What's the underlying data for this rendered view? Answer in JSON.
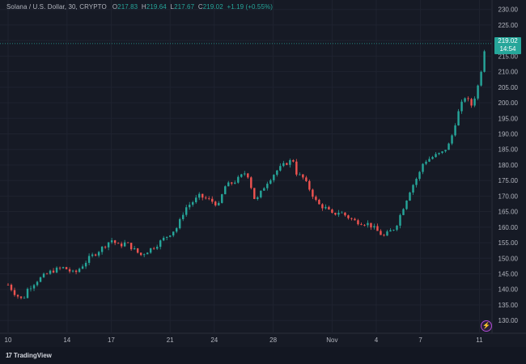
{
  "chart_data": {
    "type": "candlestick",
    "title": "Solana / U.S. Dollar, 30, CRYPTO",
    "ohlc": {
      "open_label": "O",
      "open": "217.83",
      "high_label": "H",
      "high": "219.64",
      "low_label": "L",
      "low": "217.67",
      "close_label": "C",
      "close": "219.02",
      "change": "+1.19 (+0.55%)"
    },
    "ylim": [
      127,
      232
    ],
    "y_ticks": [
      130,
      135,
      140,
      145,
      150,
      155,
      160,
      165,
      170,
      175,
      180,
      185,
      190,
      195,
      200,
      205,
      210,
      215,
      220,
      225,
      230
    ],
    "x_ticks": [
      "10",
      "14",
      "17",
      "21",
      "24",
      "28",
      "Nov",
      "4",
      "7",
      "11"
    ],
    "x_tick_day_index": [
      0,
      4,
      7,
      11,
      14,
      18,
      22,
      25,
      28,
      32
    ],
    "last_price": "219.02",
    "countdown": "14:54",
    "series_path_days": [
      0,
      0.5,
      1,
      1.3,
      2,
      3,
      3.8,
      4.5,
      5.5,
      6.3,
      7,
      7.5,
      8,
      9,
      10,
      10.5,
      11,
      11.5,
      12,
      13,
      14,
      14.3,
      14.7,
      15.5,
      16.2,
      16.8,
      17.5,
      18.2,
      19,
      19.4,
      19.6,
      20,
      20.5,
      21,
      21.6,
      22,
      22.5,
      23.5,
      24.5,
      25.5,
      26.3,
      26.8,
      27.3,
      28,
      28.2,
      29,
      29.5,
      30,
      30.5,
      31,
      31.5,
      32,
      32.4
    ],
    "series_path_values": [
      141.5,
      138.5,
      136.5,
      140,
      143,
      146,
      147,
      145,
      150,
      153,
      156,
      154,
      155,
      151,
      154,
      156,
      158,
      160,
      166,
      170,
      168,
      167,
      173,
      175,
      178,
      168,
      174,
      178,
      181,
      181.5,
      177,
      176,
      172,
      167.5,
      166,
      164,
      165,
      162,
      161,
      157,
      160,
      166,
      172,
      178,
      181,
      183,
      184,
      187,
      196,
      202,
      199,
      207,
      219
    ]
  },
  "footer": {
    "brand": "TradingView",
    "logo_mark": "17"
  },
  "icons": {
    "bottom_right": "lightning-icon"
  },
  "colors": {
    "up": "#26a69a",
    "down": "#ef5350",
    "background": "#161a25"
  }
}
